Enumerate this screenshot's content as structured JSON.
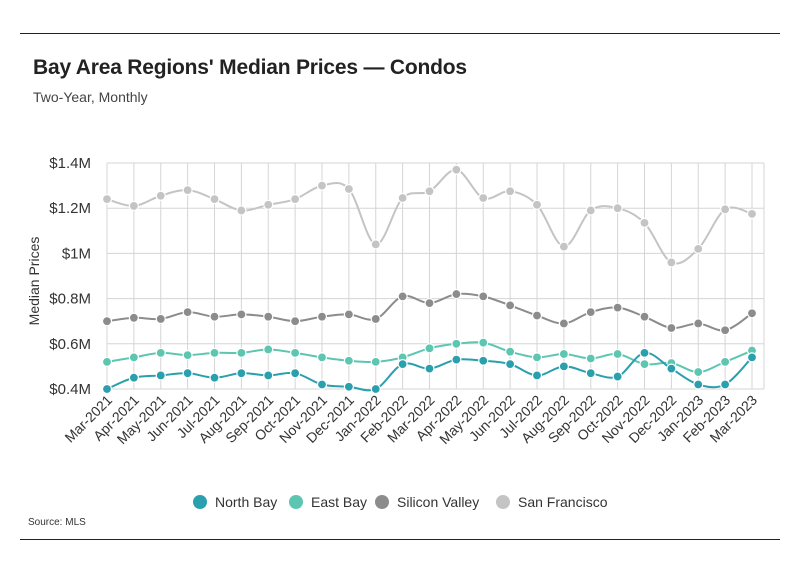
{
  "title": "Bay Area Regions' Median Prices — Condos",
  "subtitle": "Two-Year, Monthly",
  "source": "Source: MLS",
  "chart_data": {
    "type": "line",
    "ylabel": "Median Prices",
    "ylim": [
      0.4,
      1.4
    ],
    "yticks": [
      {
        "value": 0.4,
        "label": "$0.4M"
      },
      {
        "value": 0.6,
        "label": "$0.6M"
      },
      {
        "value": 0.8,
        "label": "$0.8M"
      },
      {
        "value": 1.0,
        "label": "$1M"
      },
      {
        "value": 1.2,
        "label": "$1.2M"
      },
      {
        "value": 1.4,
        "label": "$1.4M"
      }
    ],
    "grid": true,
    "legend_position": "bottom-center",
    "categories": [
      "Mar-2021",
      "Apr-2021",
      "May-2021",
      "Jun-2021",
      "Jul-2021",
      "Aug-2021",
      "Sep-2021",
      "Oct-2021",
      "Nov-2021",
      "Dec-2021",
      "Jan-2022",
      "Feb-2022",
      "Mar-2022",
      "Apr-2022",
      "May-2022",
      "Jun-2022",
      "Jul-2022",
      "Aug-2022",
      "Sep-2022",
      "Oct-2022",
      "Nov-2022",
      "Dec-2022",
      "Jan-2023",
      "Feb-2023",
      "Mar-2023"
    ],
    "series": [
      {
        "name": "North Bay",
        "color": "#2a9fad",
        "values": [
          0.4,
          0.45,
          0.46,
          0.47,
          0.45,
          0.47,
          0.46,
          0.47,
          0.42,
          0.41,
          0.4,
          0.51,
          0.49,
          0.53,
          0.525,
          0.51,
          0.46,
          0.5,
          0.47,
          0.455,
          0.56,
          0.49,
          0.42,
          0.42,
          0.54
        ]
      },
      {
        "name": "East Bay",
        "color": "#5cc6b0",
        "values": [
          0.52,
          0.54,
          0.56,
          0.55,
          0.56,
          0.56,
          0.575,
          0.56,
          0.54,
          0.525,
          0.52,
          0.54,
          0.58,
          0.6,
          0.605,
          0.565,
          0.54,
          0.555,
          0.535,
          0.555,
          0.51,
          0.515,
          0.475,
          0.52,
          0.57
        ]
      },
      {
        "name": "Silicon Valley",
        "color": "#8c8c8c",
        "values": [
          0.7,
          0.715,
          0.71,
          0.74,
          0.72,
          0.73,
          0.72,
          0.7,
          0.72,
          0.73,
          0.71,
          0.81,
          0.78,
          0.82,
          0.81,
          0.77,
          0.725,
          0.69,
          0.74,
          0.76,
          0.72,
          0.67,
          0.69,
          0.66,
          0.735
        ]
      },
      {
        "name": "San Francisco",
        "color": "#c4c4c4",
        "values": [
          1.24,
          1.21,
          1.255,
          1.28,
          1.24,
          1.19,
          1.215,
          1.24,
          1.3,
          1.285,
          1.04,
          1.245,
          1.275,
          1.37,
          1.245,
          1.275,
          1.215,
          1.03,
          1.19,
          1.2,
          1.135,
          0.96,
          1.02,
          1.195,
          1.175
        ]
      }
    ]
  }
}
